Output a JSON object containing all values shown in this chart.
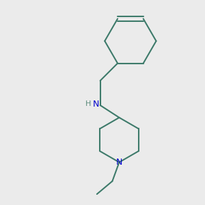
{
  "background_color": "#ebebeb",
  "bond_color": "#3d7a6a",
  "N_color": "#0000cc",
  "H_color": "#5a8a7a",
  "bond_width": 1.5,
  "figsize": [
    3.0,
    3.0
  ],
  "dpi": 100,
  "xlim": [
    0.05,
    0.95
  ],
  "ylim": [
    0.05,
    0.95
  ]
}
